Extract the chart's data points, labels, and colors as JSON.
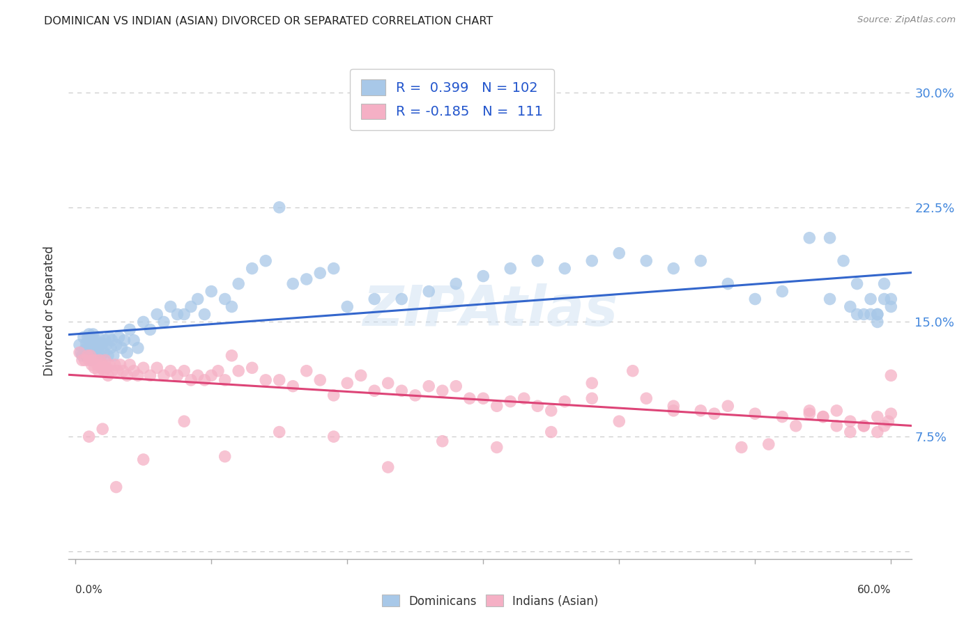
{
  "title": "DOMINICAN VS INDIAN (ASIAN) DIVORCED OR SEPARATED CORRELATION CHART",
  "source": "Source: ZipAtlas.com",
  "ylabel": "Divorced or Separated",
  "ytick_vals": [
    0.0,
    0.075,
    0.15,
    0.225,
    0.3
  ],
  "ytick_labels": [
    "",
    "7.5%",
    "15.0%",
    "22.5%",
    "30.0%"
  ],
  "xtick_vals": [
    0.0,
    0.1,
    0.2,
    0.3,
    0.4,
    0.5,
    0.6
  ],
  "dominicans_R": 0.399,
  "dominicans_N": 102,
  "indians_R": -0.185,
  "indians_N": 111,
  "dominican_color": "#a8c8e8",
  "indian_color": "#f5b0c5",
  "dominican_line_color": "#3366cc",
  "indian_line_color": "#dd4477",
  "watermark": "ZIPAtlas",
  "background_color": "#ffffff",
  "grid_color": "#cccccc",
  "dom_x": [
    0.003,
    0.004,
    0.005,
    0.006,
    0.007,
    0.008,
    0.008,
    0.009,
    0.009,
    0.01,
    0.01,
    0.01,
    0.011,
    0.011,
    0.011,
    0.012,
    0.012,
    0.012,
    0.013,
    0.013,
    0.014,
    0.014,
    0.015,
    0.015,
    0.016,
    0.016,
    0.017,
    0.017,
    0.018,
    0.019,
    0.02,
    0.021,
    0.022,
    0.023,
    0.024,
    0.025,
    0.026,
    0.027,
    0.028,
    0.03,
    0.032,
    0.034,
    0.036,
    0.038,
    0.04,
    0.043,
    0.046,
    0.05,
    0.055,
    0.06,
    0.065,
    0.07,
    0.075,
    0.08,
    0.085,
    0.09,
    0.095,
    0.1,
    0.11,
    0.115,
    0.12,
    0.13,
    0.14,
    0.15,
    0.16,
    0.17,
    0.18,
    0.19,
    0.2,
    0.22,
    0.24,
    0.26,
    0.28,
    0.3,
    0.32,
    0.34,
    0.36,
    0.38,
    0.4,
    0.42,
    0.44,
    0.46,
    0.48,
    0.5,
    0.52,
    0.54,
    0.555,
    0.565,
    0.57,
    0.575,
    0.58,
    0.585,
    0.59,
    0.595,
    0.555,
    0.575,
    0.59,
    0.6,
    0.6,
    0.595,
    0.59,
    0.585
  ],
  "dom_y": [
    0.135,
    0.13,
    0.128,
    0.14,
    0.132,
    0.136,
    0.128,
    0.132,
    0.14,
    0.138,
    0.13,
    0.142,
    0.135,
    0.128,
    0.14,
    0.133,
    0.138,
    0.125,
    0.13,
    0.142,
    0.133,
    0.128,
    0.138,
    0.13,
    0.136,
    0.128,
    0.133,
    0.14,
    0.135,
    0.128,
    0.136,
    0.13,
    0.138,
    0.135,
    0.128,
    0.14,
    0.133,
    0.138,
    0.128,
    0.135,
    0.14,
    0.133,
    0.138,
    0.13,
    0.145,
    0.138,
    0.133,
    0.15,
    0.145,
    0.155,
    0.15,
    0.16,
    0.155,
    0.155,
    0.16,
    0.165,
    0.155,
    0.17,
    0.165,
    0.16,
    0.175,
    0.185,
    0.19,
    0.225,
    0.175,
    0.178,
    0.182,
    0.185,
    0.16,
    0.165,
    0.165,
    0.17,
    0.175,
    0.18,
    0.185,
    0.19,
    0.185,
    0.19,
    0.195,
    0.19,
    0.185,
    0.19,
    0.175,
    0.165,
    0.17,
    0.205,
    0.205,
    0.19,
    0.16,
    0.175,
    0.155,
    0.165,
    0.15,
    0.175,
    0.165,
    0.155,
    0.155,
    0.165,
    0.16,
    0.165,
    0.155,
    0.155
  ],
  "ind_x": [
    0.003,
    0.005,
    0.007,
    0.009,
    0.01,
    0.011,
    0.012,
    0.013,
    0.014,
    0.015,
    0.016,
    0.017,
    0.018,
    0.019,
    0.02,
    0.021,
    0.022,
    0.023,
    0.024,
    0.025,
    0.027,
    0.029,
    0.031,
    0.033,
    0.035,
    0.038,
    0.04,
    0.043,
    0.046,
    0.05,
    0.055,
    0.06,
    0.065,
    0.07,
    0.075,
    0.08,
    0.085,
    0.09,
    0.095,
    0.1,
    0.105,
    0.11,
    0.115,
    0.12,
    0.13,
    0.14,
    0.15,
    0.16,
    0.17,
    0.18,
    0.19,
    0.2,
    0.21,
    0.22,
    0.23,
    0.24,
    0.25,
    0.26,
    0.27,
    0.28,
    0.29,
    0.3,
    0.31,
    0.32,
    0.33,
    0.34,
    0.35,
    0.36,
    0.38,
    0.4,
    0.42,
    0.44,
    0.46,
    0.48,
    0.5,
    0.52,
    0.54,
    0.55,
    0.56,
    0.57,
    0.58,
    0.59,
    0.6,
    0.6,
    0.598,
    0.595,
    0.59,
    0.58,
    0.57,
    0.56,
    0.55,
    0.54,
    0.53,
    0.51,
    0.49,
    0.47,
    0.44,
    0.41,
    0.38,
    0.35,
    0.31,
    0.27,
    0.23,
    0.19,
    0.15,
    0.11,
    0.08,
    0.05,
    0.03,
    0.02,
    0.01
  ],
  "ind_y": [
    0.13,
    0.125,
    0.125,
    0.128,
    0.125,
    0.128,
    0.122,
    0.125,
    0.12,
    0.125,
    0.122,
    0.118,
    0.125,
    0.12,
    0.122,
    0.118,
    0.125,
    0.12,
    0.115,
    0.122,
    0.118,
    0.122,
    0.118,
    0.122,
    0.118,
    0.115,
    0.122,
    0.118,
    0.115,
    0.12,
    0.115,
    0.12,
    0.115,
    0.118,
    0.115,
    0.118,
    0.112,
    0.115,
    0.112,
    0.115,
    0.118,
    0.112,
    0.128,
    0.118,
    0.12,
    0.112,
    0.112,
    0.108,
    0.118,
    0.112,
    0.102,
    0.11,
    0.115,
    0.105,
    0.11,
    0.105,
    0.102,
    0.108,
    0.105,
    0.108,
    0.1,
    0.1,
    0.095,
    0.098,
    0.1,
    0.095,
    0.092,
    0.098,
    0.1,
    0.085,
    0.1,
    0.095,
    0.092,
    0.095,
    0.09,
    0.088,
    0.09,
    0.088,
    0.092,
    0.085,
    0.082,
    0.088,
    0.09,
    0.115,
    0.085,
    0.082,
    0.078,
    0.082,
    0.078,
    0.082,
    0.088,
    0.092,
    0.082,
    0.07,
    0.068,
    0.09,
    0.092,
    0.118,
    0.11,
    0.078,
    0.068,
    0.072,
    0.055,
    0.075,
    0.078,
    0.062,
    0.085,
    0.06,
    0.042,
    0.08,
    0.075
  ]
}
